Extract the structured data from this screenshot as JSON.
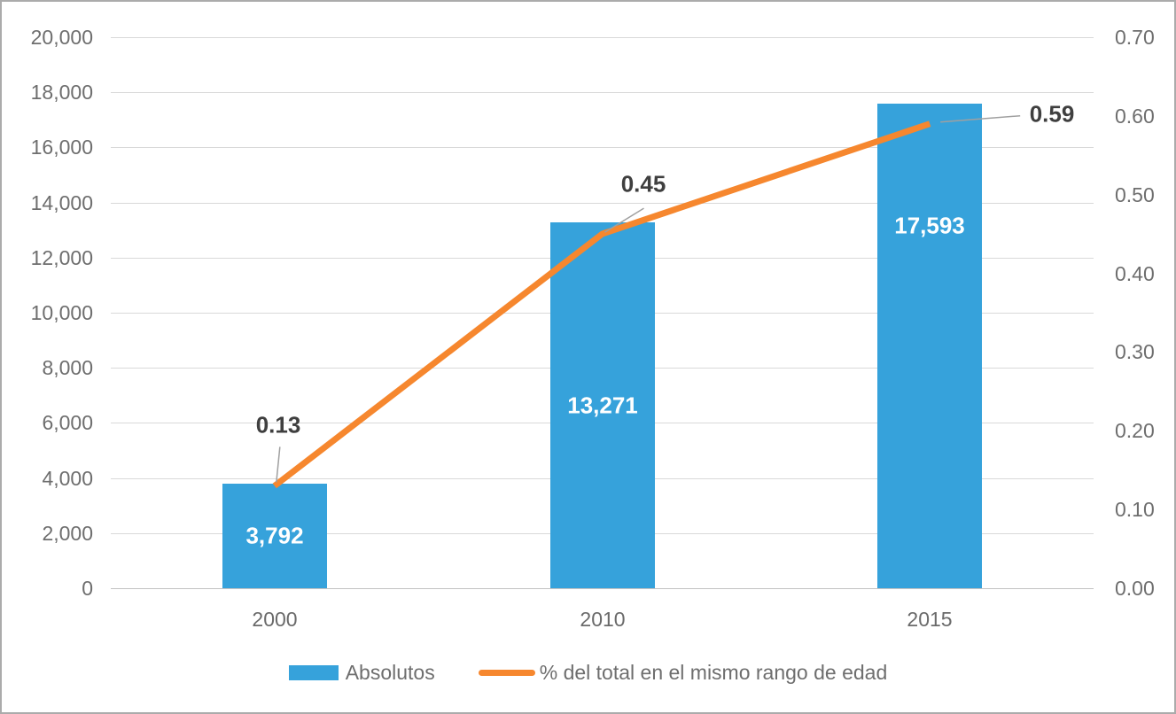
{
  "chart_data": {
    "type": "combo-bar-line",
    "title": "",
    "categories": [
      "2000",
      "2010",
      "2015"
    ],
    "series": [
      {
        "name": "Absolutos",
        "type": "bar",
        "axis": "left",
        "values": [
          3792,
          13271,
          17593
        ],
        "data_labels": [
          "3,792",
          "13,271",
          "17,593"
        ],
        "color": "#36a2db"
      },
      {
        "name": "% del total en el mismo rango de edad",
        "type": "line",
        "axis": "right",
        "values": [
          0.13,
          0.45,
          0.59
        ],
        "data_labels": [
          "0.13",
          "0.45",
          "0.59"
        ],
        "color": "#f6872e"
      }
    ],
    "left_axis": {
      "min": 0,
      "max": 20000,
      "step": 2000,
      "tick_labels": [
        "20,000",
        "18,000",
        "16,000",
        "14,000",
        "12,000",
        "10,000",
        "8,000",
        "6,000",
        "4,000",
        "2,000",
        "0"
      ]
    },
    "right_axis": {
      "min": 0.0,
      "max": 0.7,
      "step": 0.1,
      "tick_labels": [
        "0.70",
        "0.60",
        "0.50",
        "0.40",
        "0.30",
        "0.20",
        "0.10",
        "0.00"
      ]
    },
    "grid": true,
    "legend_position": "bottom"
  },
  "colors": {
    "bar": "#36a2db",
    "line": "#f6872e",
    "gridline": "#d9d9d9",
    "axis_line": "#c3c3c3",
    "axis_text": "#6e6e6e",
    "annotation_text": "#3f3f3f",
    "leader_line": "#a0a0a0",
    "bar_label_text": "#ffffff",
    "background": "#ffffff",
    "border": "#ababab"
  }
}
